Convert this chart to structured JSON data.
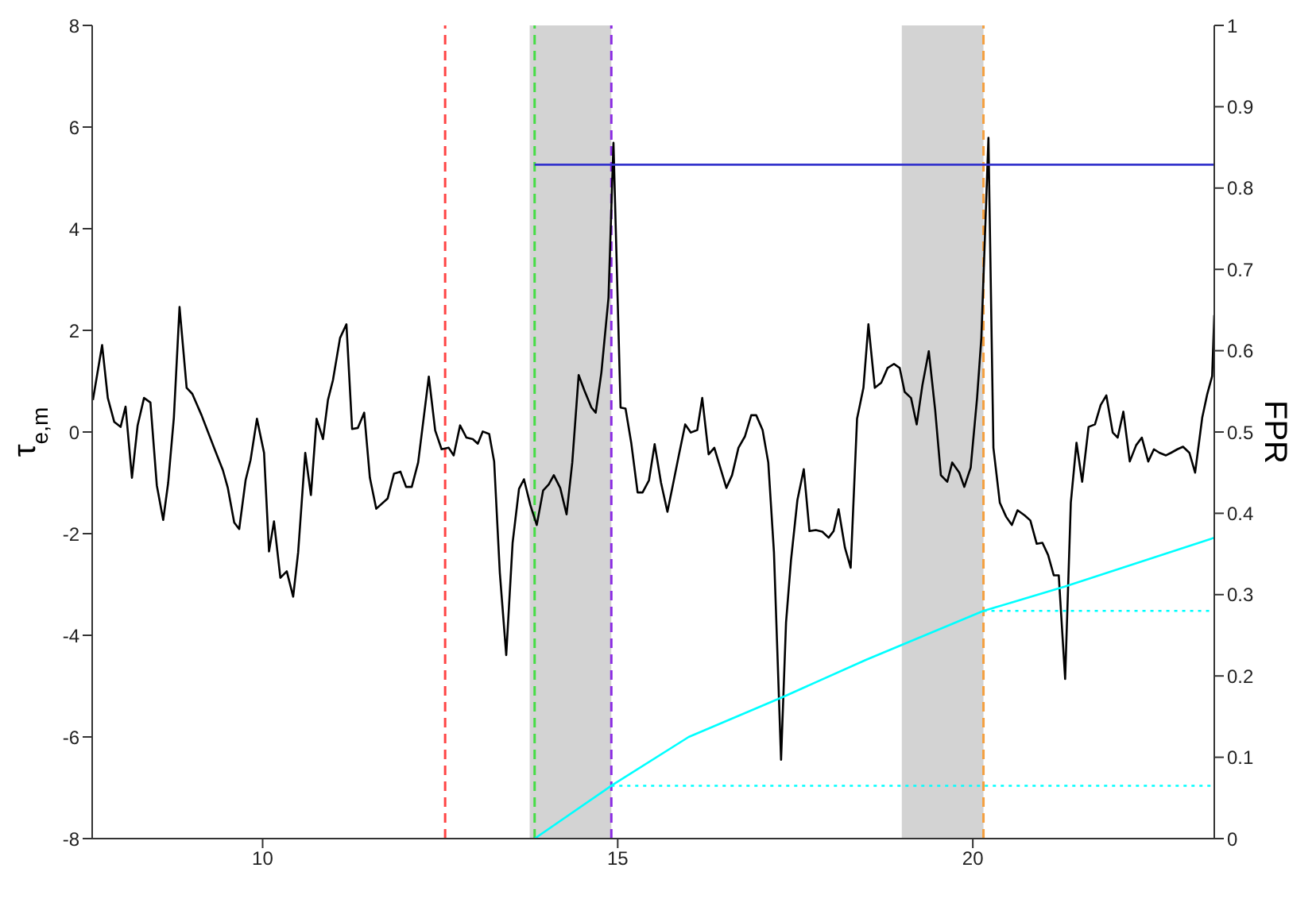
{
  "chart_data": {
    "type": "line",
    "ylabel": "τ$_{e,m}$",
    "y2label": "FPR",
    "xlim": [
      7.6,
      23.4
    ],
    "xticks": [
      10,
      15,
      20
    ],
    "ylim": [
      -8,
      8
    ],
    "yticks": [
      -8,
      -6,
      -4,
      -2,
      0,
      2,
      4,
      6,
      8
    ],
    "y2lim": [
      0,
      1
    ],
    "y2ticks": [
      0,
      0.1,
      0.2,
      0.3,
      0.4,
      0.5,
      0.6,
      0.7,
      0.8,
      0.9,
      1
    ],
    "grid": false,
    "legend": false,
    "marker": "none",
    "line_style": "solid",
    "series": [
      {
        "color": "#000000",
        "x": [
          7.61,
          7.74,
          7.82,
          7.91,
          8.0,
          8.07,
          8.16,
          8.24,
          8.33,
          8.42,
          8.51,
          8.6,
          8.67,
          8.75,
          8.83,
          8.93,
          9.01,
          9.14,
          9.33,
          9.44,
          9.51,
          9.6,
          9.67,
          9.76,
          9.83,
          9.92,
          10.02,
          10.09,
          10.16,
          10.25,
          10.34,
          10.43,
          10.5,
          10.6,
          10.68,
          10.76,
          10.85,
          10.92,
          10.99,
          11.09,
          11.18,
          11.26,
          11.34,
          11.43,
          11.51,
          11.6,
          11.76,
          11.85,
          11.94,
          12.02,
          12.1,
          12.19,
          12.34,
          12.43,
          12.52,
          12.62,
          12.69,
          12.78,
          12.87,
          12.96,
          13.03,
          13.1,
          13.19,
          13.26,
          13.34,
          13.43,
          13.52,
          13.61,
          13.68,
          13.77,
          13.86,
          13.95,
          14.03,
          14.1,
          14.19,
          14.28,
          14.36,
          14.45,
          14.53,
          14.63,
          14.69,
          14.77,
          14.87,
          14.94,
          15.04,
          15.11,
          15.19,
          15.28,
          15.35,
          15.44,
          15.52,
          15.61,
          15.7,
          15.79,
          15.86,
          15.95,
          16.03,
          16.12,
          16.19,
          16.28,
          16.36,
          16.44,
          16.53,
          16.61,
          16.7,
          16.79,
          16.88,
          16.95,
          17.04,
          17.12,
          17.2,
          17.3,
          17.37,
          17.44,
          17.53,
          17.62,
          17.7,
          17.79,
          17.88,
          17.97,
          18.04,
          18.11,
          18.2,
          18.28,
          18.37,
          18.46,
          18.53,
          18.62,
          18.71,
          18.8,
          18.89,
          18.97,
          19.04,
          19.13,
          19.21,
          19.29,
          19.38,
          19.47,
          19.55,
          19.64,
          19.71,
          19.81,
          19.88,
          19.97,
          20.06,
          20.12,
          20.22,
          20.29,
          20.38,
          20.47,
          20.55,
          20.63,
          20.73,
          20.81,
          20.9,
          20.98,
          21.06,
          21.14,
          21.21,
          21.3,
          21.38,
          21.46,
          21.54,
          21.63,
          21.72,
          21.8,
          21.88,
          21.97,
          22.04,
          22.12,
          22.21,
          22.3,
          22.38,
          22.47,
          22.55,
          22.63,
          22.72,
          22.79,
          22.88,
          22.96,
          23.05,
          23.13,
          23.23,
          23.3,
          23.37,
          23.4
        ],
        "values": [
          0.63,
          1.71,
          0.67,
          0.2,
          0.1,
          0.5,
          -0.9,
          0.13,
          0.67,
          0.58,
          -1.05,
          -1.73,
          -1.0,
          0.28,
          2.46,
          0.87,
          0.75,
          0.33,
          -0.36,
          -0.75,
          -1.1,
          -1.78,
          -1.91,
          -0.95,
          -0.55,
          0.26,
          -0.41,
          -2.35,
          -1.76,
          -2.87,
          -2.74,
          -3.24,
          -2.37,
          -0.41,
          -1.24,
          0.26,
          -0.14,
          0.63,
          1.02,
          1.85,
          2.12,
          0.06,
          0.08,
          0.38,
          -0.9,
          -1.51,
          -1.31,
          -0.82,
          -0.78,
          -1.08,
          -1.08,
          -0.6,
          1.09,
          0.03,
          -0.34,
          -0.31,
          -0.46,
          0.13,
          -0.11,
          -0.14,
          -0.23,
          0.01,
          -0.04,
          -0.58,
          -2.77,
          -4.39,
          -2.18,
          -1.12,
          -0.93,
          -1.44,
          -1.83,
          -1.15,
          -1.03,
          -0.85,
          -1.1,
          -1.62,
          -0.6,
          1.12,
          0.82,
          0.48,
          0.38,
          1.17,
          2.64,
          5.69,
          0.48,
          0.46,
          -0.21,
          -1.19,
          -1.19,
          -0.95,
          -0.24,
          -1.0,
          -1.57,
          -0.95,
          -0.46,
          0.15,
          -0.01,
          0.04,
          0.67,
          -0.44,
          -0.31,
          -0.68,
          -1.1,
          -0.85,
          -0.31,
          -0.09,
          0.33,
          0.33,
          0.04,
          -0.6,
          -2.37,
          -6.45,
          -3.75,
          -2.52,
          -1.34,
          -0.73,
          -1.95,
          -1.93,
          -1.96,
          -2.08,
          -1.95,
          -1.52,
          -2.28,
          -2.67,
          0.26,
          0.87,
          2.12,
          0.87,
          0.97,
          1.26,
          1.34,
          1.26,
          0.79,
          0.67,
          0.15,
          0.92,
          1.59,
          0.43,
          -0.85,
          -0.98,
          -0.6,
          -0.8,
          -1.08,
          -0.7,
          0.67,
          1.85,
          5.79,
          -0.31,
          -1.39,
          -1.67,
          -1.83,
          -1.54,
          -1.64,
          -1.74,
          -2.2,
          -2.18,
          -2.42,
          -2.82,
          -2.82,
          -4.86,
          -1.39,
          -0.21,
          -0.98,
          0.1,
          0.15,
          0.53,
          0.72,
          -0.01,
          -0.11,
          0.4,
          -0.58,
          -0.26,
          -0.11,
          -0.58,
          -0.34,
          -0.41,
          -0.46,
          -0.41,
          -0.34,
          -0.29,
          -0.41,
          -0.8,
          0.28,
          0.74,
          1.1,
          2.3
        ]
      },
      {
        "color": "#3333cc",
        "x": [
          13.83,
          23.4
        ],
        "values": [
          5.26,
          5.26
        ]
      },
      {
        "color": "#00ffff",
        "axis": "y2",
        "x": [
          13.83,
          14.91,
          16.0,
          17.35,
          18.5,
          20.15,
          21.3,
          23.4
        ],
        "values": [
          0,
          0.065,
          0.125,
          0.175,
          0.22,
          0.28,
          0.31,
          0.37
        ]
      },
      {
        "color": "#00ffff",
        "axis": "y2",
        "line_style": "dotted",
        "x": [
          14.91,
          23.4
        ],
        "values": [
          0.065,
          0.065
        ]
      },
      {
        "color": "#00ffff",
        "axis": "y2",
        "line_style": "dotted",
        "x": [
          20.15,
          23.4
        ],
        "values": [
          0.28,
          0.28
        ]
      }
    ],
    "bands": [
      {
        "axis": "x",
        "from": 13.76,
        "to": 14.91,
        "color": "#d3d3d3"
      },
      {
        "axis": "x",
        "from": 19.0,
        "to": 20.15,
        "color": "#d3d3d3"
      }
    ],
    "ref_lines": [
      {
        "axis": "x",
        "value": 12.57,
        "color": "#ff4444",
        "line_style": "dashed"
      },
      {
        "axis": "x",
        "value": 13.83,
        "color": "#44dd44",
        "line_style": "dashed"
      },
      {
        "axis": "x",
        "value": 14.91,
        "color": "#8a2be2",
        "line_style": "dashed"
      },
      {
        "axis": "x",
        "value": 20.15,
        "color": "#f4a040",
        "line_style": "dashed"
      }
    ]
  }
}
